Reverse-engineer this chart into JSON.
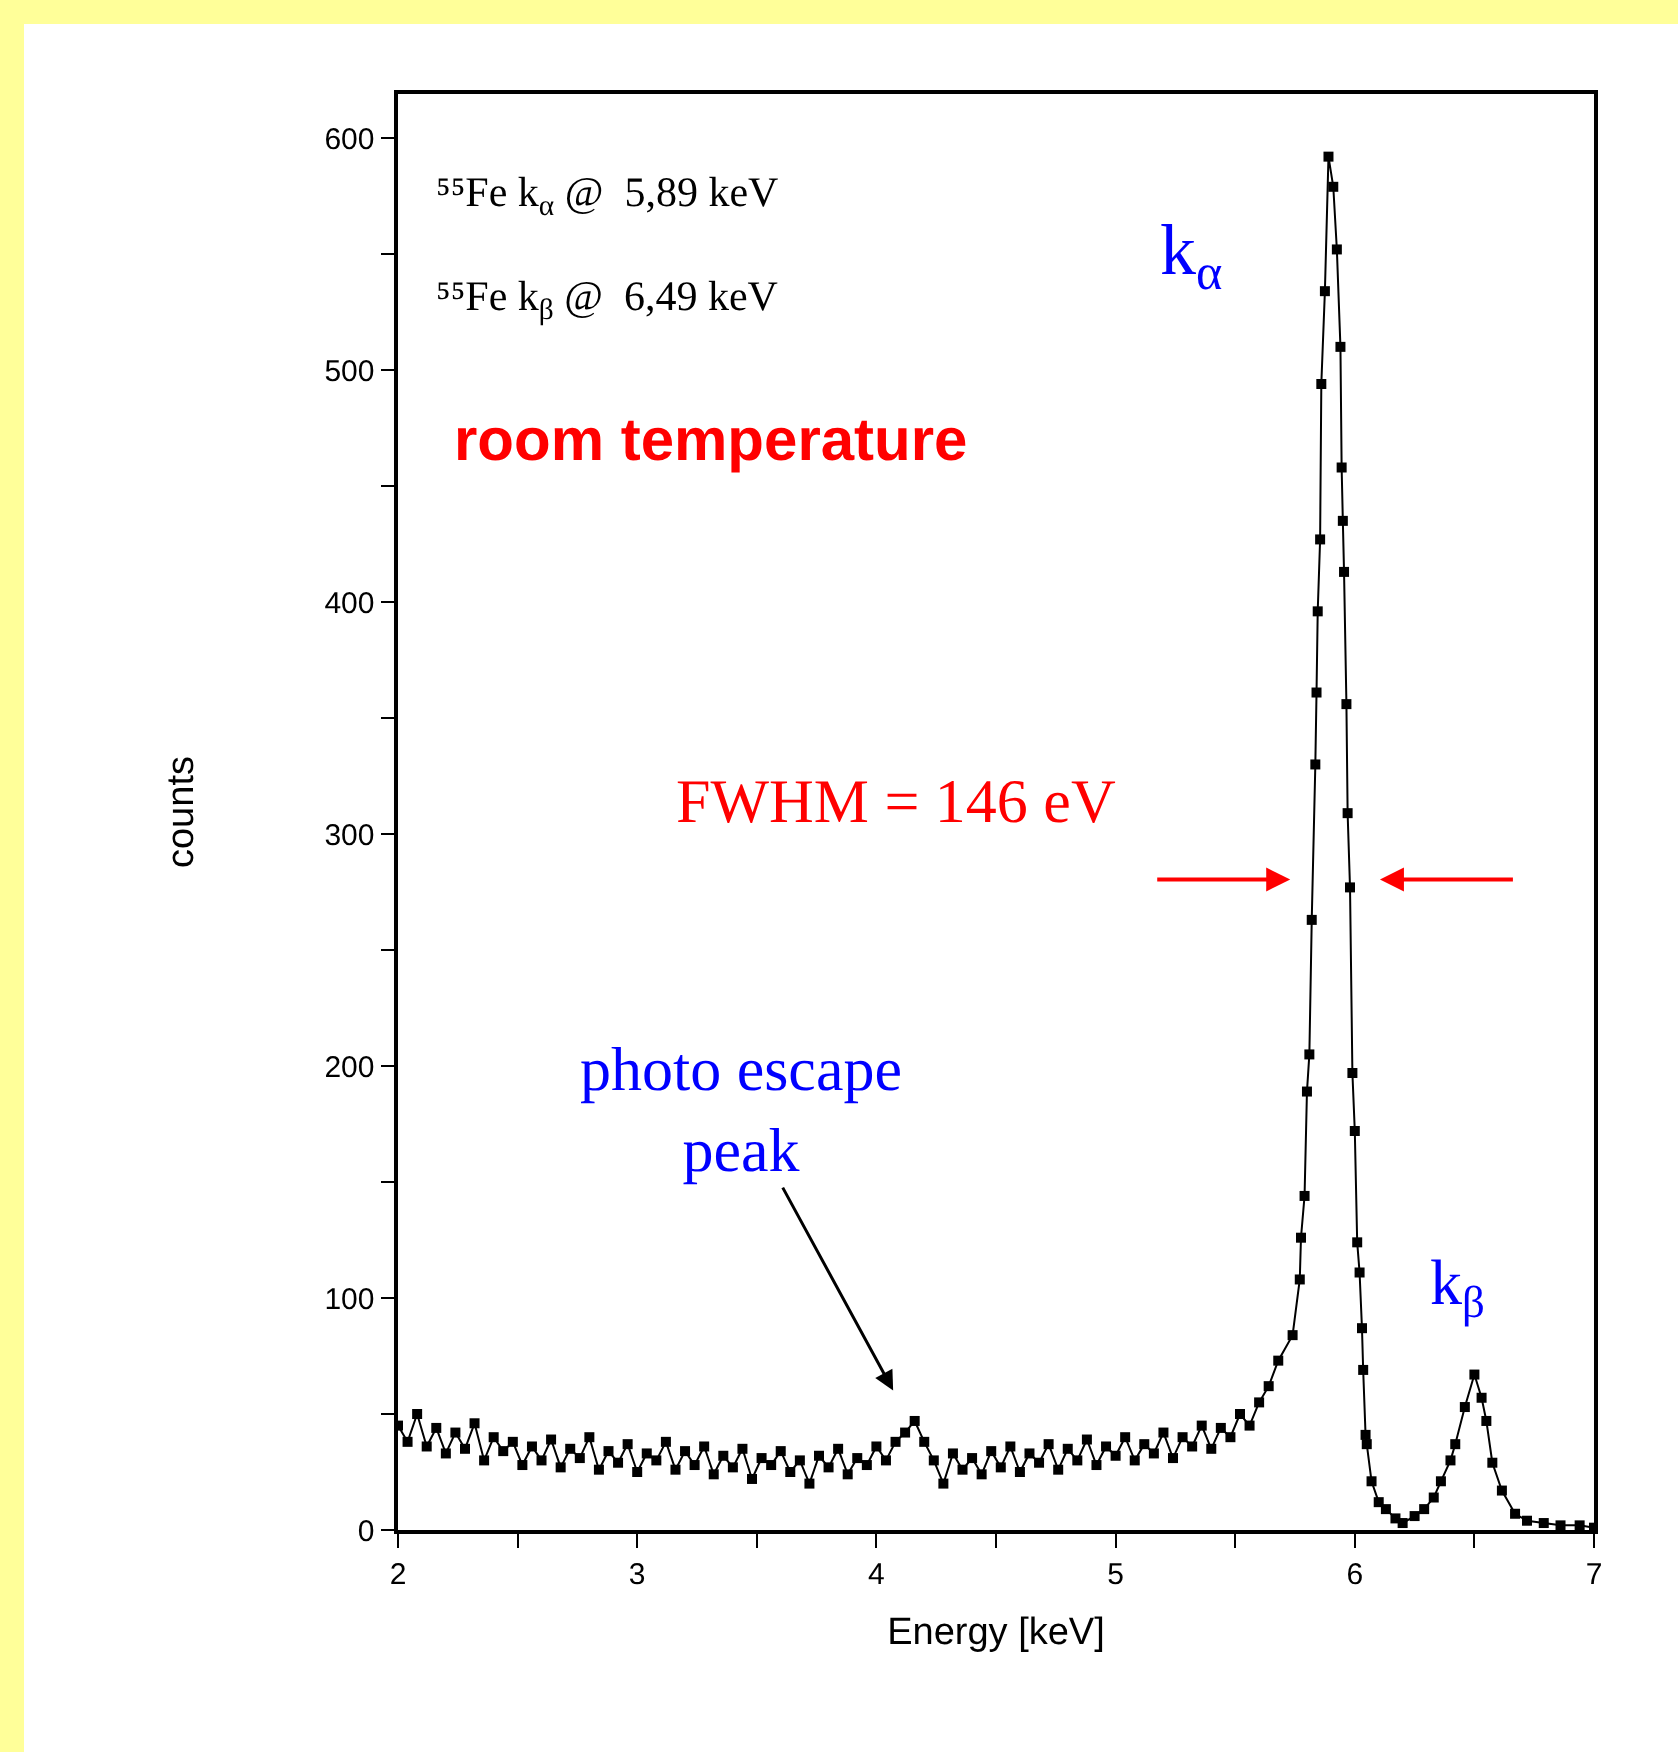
{
  "chart_data": {
    "type": "line",
    "xlabel": "Energy [keV]",
    "ylabel": "counts",
    "x": [
      2.0,
      2.04,
      2.08,
      2.12,
      2.16,
      2.2,
      2.24,
      2.28,
      2.32,
      2.36,
      2.4,
      2.44,
      2.48,
      2.52,
      2.56,
      2.6,
      2.64,
      2.68,
      2.72,
      2.76,
      2.8,
      2.84,
      2.88,
      2.92,
      2.96,
      3.0,
      3.04,
      3.08,
      3.12,
      3.16,
      3.2,
      3.24,
      3.28,
      3.32,
      3.36,
      3.4,
      3.44,
      3.48,
      3.52,
      3.56,
      3.6,
      3.64,
      3.68,
      3.72,
      3.76,
      3.8,
      3.84,
      3.88,
      3.92,
      3.96,
      4.0,
      4.04,
      4.08,
      4.12,
      4.16,
      4.2,
      4.24,
      4.28,
      4.32,
      4.36,
      4.4,
      4.44,
      4.48,
      4.52,
      4.56,
      4.6,
      4.64,
      4.68,
      4.72,
      4.76,
      4.8,
      4.84,
      4.88,
      4.92,
      4.96,
      5.0,
      5.04,
      5.08,
      5.12,
      5.16,
      5.2,
      5.24,
      5.28,
      5.32,
      5.36,
      5.4,
      5.44,
      5.48,
      5.52,
      5.56,
      5.6,
      5.64,
      5.68,
      5.74,
      5.77,
      5.775,
      5.79,
      5.8,
      5.81,
      5.82,
      5.835,
      5.84,
      5.845,
      5.855,
      5.86,
      5.875,
      5.89,
      5.91,
      5.925,
      5.94,
      5.945,
      5.95,
      5.955,
      5.965,
      5.97,
      5.98,
      5.99,
      6.0,
      6.01,
      6.02,
      6.03,
      6.035,
      6.045,
      6.05,
      6.07,
      6.1,
      6.13,
      6.17,
      6.2,
      6.25,
      6.29,
      6.33,
      6.36,
      6.4,
      6.42,
      6.46,
      6.5,
      6.53,
      6.55,
      6.575,
      6.615,
      6.67,
      6.72,
      6.79,
      6.86,
      6.94,
      7.0
    ],
    "series": [
      {
        "color": "#000000",
        "values": [
          45,
          38,
          50,
          36,
          44,
          33,
          42,
          35,
          46,
          30,
          40,
          34,
          38,
          28,
          36,
          30,
          39,
          27,
          35,
          31,
          40,
          26,
          34,
          29,
          37,
          25,
          33,
          30,
          38,
          26,
          34,
          28,
          36,
          24,
          32,
          27,
          35,
          22,
          31,
          28,
          34,
          25,
          30,
          20,
          32,
          27,
          35,
          24,
          31,
          28,
          36,
          30,
          38,
          42,
          47,
          38,
          30,
          20,
          33,
          26,
          31,
          24,
          34,
          27,
          36,
          25,
          33,
          29,
          37,
          26,
          35,
          30,
          39,
          28,
          36,
          32,
          40,
          30,
          37,
          33,
          42,
          31,
          40,
          36,
          45,
          35,
          44,
          40,
          50,
          45,
          55,
          62,
          73,
          84,
          108,
          126,
          144,
          189,
          205,
          263,
          330,
          361,
          396,
          427,
          494,
          534,
          592,
          579,
          552,
          510,
          458,
          435,
          413,
          356,
          309,
          277,
          197,
          172,
          124,
          111,
          87,
          69,
          41,
          37,
          21,
          12,
          9,
          5,
          3,
          6,
          9,
          14,
          21,
          30,
          37,
          53,
          67,
          57,
          47,
          29,
          17,
          7,
          4,
          3,
          2,
          2,
          1
        ]
      }
    ],
    "xlim": [
      2,
      7
    ],
    "xticks": [
      2,
      {
        "value": 2.5,
        "label": null
      },
      3,
      {
        "value": 3.5,
        "label": null
      },
      4,
      {
        "value": 4.5,
        "label": null
      },
      5,
      {
        "value": 5.5,
        "label": null
      },
      6,
      {
        "value": 6.5,
        "label": null
      },
      7
    ],
    "ylim": [
      0,
      619
    ],
    "yticks": [
      0,
      {
        "value": 50,
        "label": null
      },
      100,
      {
        "value": 150,
        "label": null
      },
      200,
      {
        "value": 250,
        "label": null
      },
      300,
      {
        "value": 350,
        "label": null
      },
      400,
      {
        "value": 450,
        "label": null
      },
      500,
      {
        "value": 550,
        "label": null
      },
      600
    ],
    "marker": "square",
    "line_style": "solid",
    "annotations": [
      "⁵⁵Fe k$_{α}$ @  5,89 keV",
      "⁵⁵Fe k$_{β}$ @  6,49 keV",
      "room temperature",
      {
        "text": "k$_{α}$",
        "x": 5.89,
        "y": 592
      },
      {
        "text": "k$_{β}$",
        "x": 6.49,
        "y": 67
      },
      "FWHM = 146 eV",
      {
        "text": "photo escape\npeak",
        "x": 4.15,
        "y": 45
      }
    ]
  }
}
